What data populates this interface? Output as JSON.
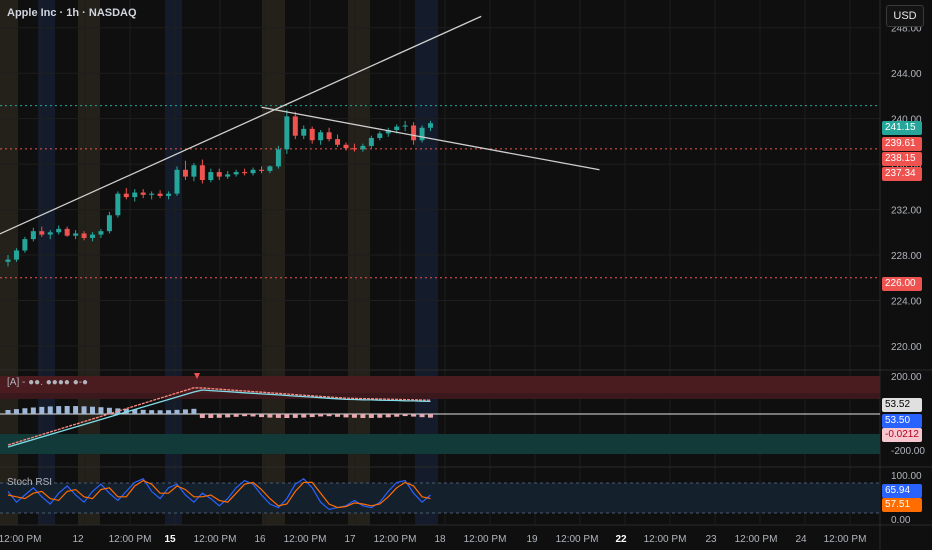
{
  "header": {
    "title": "Apple Inc · 1h · NASDAQ",
    "currency": "USD"
  },
  "colors": {
    "background": "#0f0f0f",
    "up": "#26a69a",
    "down": "#ef5350",
    "grid": "#1e1e1e",
    "trendline": "#cfcfcf",
    "stoch_k": "#2962ff",
    "stoch_d": "#ff6d00"
  },
  "price_axis": {
    "ticks": [
      "248.00",
      "244.00",
      "240.00",
      "236.00",
      "232.00",
      "228.00",
      "224.00",
      "220.00"
    ],
    "badges": [
      {
        "label": "241.15",
        "color": "#26a69a"
      },
      {
        "label": "239.61",
        "color": "#ef5350"
      },
      {
        "label": "238.15",
        "color": "#ef5350"
      },
      {
        "label": "237.34",
        "color": "#ef5350"
      },
      {
        "label": "226.00",
        "color": "#ef5350"
      }
    ],
    "levels": [
      {
        "value": 241.15,
        "color": "#26a69a"
      },
      {
        "value": 237.34,
        "color": "#ef5350"
      },
      {
        "value": 226.0,
        "color": "#ef5350"
      }
    ]
  },
  "indicator1": {
    "label": "[A] - ●●. ●●●● ●-●",
    "ticks": [
      "200.00",
      "-200.00"
    ],
    "badges": [
      {
        "label": "53.52",
        "color": "#e0e0e0",
        "text": "#000000"
      },
      {
        "label": "53.50",
        "color": "#2962ff",
        "text": "#ffffff"
      },
      {
        "label": "-0.0212",
        "color": "#f8c8d0",
        "text": "#b00020"
      }
    ]
  },
  "indicator2": {
    "label": "Stoch RSI",
    "ticks": [
      "100.00",
      "0.00"
    ],
    "badges": [
      {
        "label": "65.94",
        "color": "#2962ff",
        "text": "#ffffff"
      },
      {
        "label": "57.51",
        "color": "#ff6d00",
        "text": "#ffffff"
      }
    ]
  },
  "time_axis": {
    "labels": [
      "12:00 PM",
      "12",
      "12:00 PM",
      "15",
      "12:00 PM",
      "16",
      "12:00 PM",
      "17",
      "12:00 PM",
      "18",
      "12:00 PM",
      "19",
      "12:00 PM",
      "22",
      "12:00 PM",
      "23",
      "12:00 PM",
      "24",
      "12:00 PM"
    ],
    "bold": [
      "15",
      "22"
    ]
  },
  "chart_data": {
    "type": "candlestick",
    "symbol": "Apple Inc",
    "interval": "1h",
    "exchange": "NASDAQ",
    "price_range": [
      218.5,
      250.0
    ],
    "candles": [
      [
        227.4,
        228.0,
        227.0,
        227.6
      ],
      [
        227.6,
        228.6,
        227.4,
        228.4
      ],
      [
        228.4,
        229.6,
        228.2,
        229.4
      ],
      [
        229.4,
        230.4,
        229.2,
        230.1
      ],
      [
        230.1,
        230.5,
        229.6,
        229.8
      ],
      [
        229.8,
        230.2,
        229.4,
        230.0
      ],
      [
        230.0,
        230.6,
        229.8,
        230.3
      ],
      [
        230.3,
        230.5,
        229.6,
        229.7
      ],
      [
        229.7,
        230.2,
        229.4,
        229.9
      ],
      [
        229.9,
        230.1,
        229.3,
        229.5
      ],
      [
        229.5,
        230.0,
        229.2,
        229.8
      ],
      [
        229.8,
        230.3,
        229.5,
        230.1
      ],
      [
        230.1,
        231.8,
        229.9,
        231.5
      ],
      [
        231.5,
        233.6,
        231.3,
        233.4
      ],
      [
        233.4,
        233.9,
        232.9,
        233.1
      ],
      [
        233.1,
        233.8,
        232.7,
        233.5
      ],
      [
        233.5,
        233.8,
        233.0,
        233.3
      ],
      [
        233.3,
        233.6,
        232.9,
        233.4
      ],
      [
        233.4,
        233.7,
        233.0,
        233.2
      ],
      [
        233.2,
        233.6,
        232.9,
        233.4
      ],
      [
        233.4,
        235.8,
        233.2,
        235.5
      ],
      [
        235.5,
        236.3,
        234.6,
        234.9
      ],
      [
        234.9,
        236.1,
        234.5,
        235.9
      ],
      [
        235.9,
        236.4,
        234.3,
        234.6
      ],
      [
        234.6,
        235.6,
        234.4,
        235.3
      ],
      [
        235.3,
        235.6,
        234.6,
        234.9
      ],
      [
        234.9,
        235.4,
        234.7,
        235.1
      ],
      [
        235.1,
        235.5,
        234.9,
        235.3
      ],
      [
        235.3,
        235.6,
        235.0,
        235.2
      ],
      [
        235.2,
        235.7,
        235.0,
        235.5
      ],
      [
        235.5,
        235.8,
        235.2,
        235.4
      ],
      [
        235.4,
        235.9,
        235.2,
        235.8
      ],
      [
        235.8,
        237.6,
        235.6,
        237.3
      ],
      [
        237.3,
        240.8,
        236.9,
        240.2
      ],
      [
        240.2,
        240.6,
        238.2,
        238.5
      ],
      [
        238.5,
        239.4,
        238.2,
        239.1
      ],
      [
        239.1,
        239.3,
        237.8,
        238.1
      ],
      [
        238.1,
        239.0,
        237.7,
        238.8
      ],
      [
        238.8,
        239.2,
        238.0,
        238.2
      ],
      [
        238.2,
        238.6,
        237.5,
        237.7
      ],
      [
        237.7,
        237.9,
        237.2,
        237.4
      ],
      [
        237.4,
        237.8,
        237.1,
        237.3
      ],
      [
        237.3,
        237.8,
        237.1,
        237.6
      ],
      [
        237.6,
        238.5,
        237.4,
        238.3
      ],
      [
        238.3,
        238.9,
        238.1,
        238.7
      ],
      [
        238.7,
        239.2,
        238.4,
        239.0
      ],
      [
        239.0,
        239.5,
        238.7,
        239.3
      ],
      [
        239.3,
        239.8,
        238.9,
        239.4
      ],
      [
        239.4,
        239.7,
        237.7,
        238.1
      ],
      [
        238.1,
        239.4,
        237.9,
        239.2
      ],
      [
        239.2,
        239.8,
        238.9,
        239.6
      ]
    ],
    "trendlines": [
      {
        "name": "ascending",
        "from": [
          -8,
          227.5
        ],
        "to": [
          56,
          249
        ]
      },
      {
        "name": "descending",
        "from": [
          30,
          241
        ],
        "to": [
          70,
          235.5
        ]
      }
    ]
  }
}
